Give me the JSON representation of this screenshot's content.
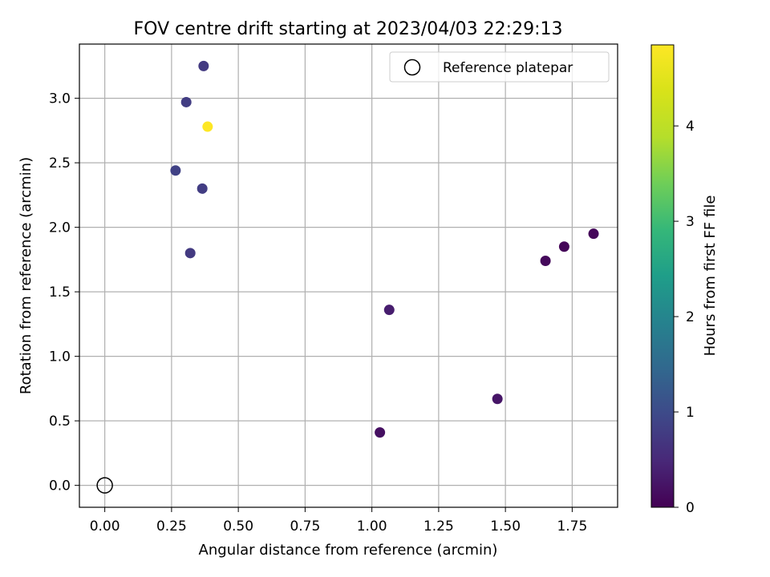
{
  "chart_data": {
    "type": "scatter",
    "title": "FOV centre drift starting at 2023/04/03 22:29:13",
    "xlabel": "Angular distance from reference (arcmin)",
    "ylabel": "Rotation from reference (arcmin)",
    "xlim": [
      -0.095,
      1.92
    ],
    "ylim": [
      -0.17,
      3.42
    ],
    "x_ticks": [
      "0.00",
      "0.25",
      "0.50",
      "0.75",
      "1.00",
      "1.25",
      "1.50",
      "1.75"
    ],
    "x_tick_values": [
      0,
      0.25,
      0.5,
      0.75,
      1.0,
      1.25,
      1.5,
      1.75
    ],
    "y_ticks": [
      "0.0",
      "0.5",
      "1.0",
      "1.5",
      "2.0",
      "2.5",
      "3.0"
    ],
    "y_tick_values": [
      0,
      0.5,
      1.0,
      1.5,
      2.0,
      2.5,
      3.0
    ],
    "grid": true,
    "legend": {
      "position": "top-right",
      "label": "Reference platepar"
    },
    "reference_point": {
      "x": 0,
      "y": 0
    },
    "colorbar": {
      "label": "Hours from first FF file",
      "range": [
        0,
        4.85
      ],
      "ticks": [
        "0",
        "1",
        "2",
        "3",
        "4"
      ],
      "tick_values": [
        0,
        1,
        2,
        3,
        4
      ],
      "colormap": "viridis"
    },
    "points": [
      {
        "x": 1.03,
        "y": 0.41,
        "hours": 0.18
      },
      {
        "x": 1.47,
        "y": 0.67,
        "hours": 0.25
      },
      {
        "x": 1.065,
        "y": 1.36,
        "hours": 0.35
      },
      {
        "x": 1.65,
        "y": 1.74,
        "hours": 0.1
      },
      {
        "x": 1.72,
        "y": 1.85,
        "hours": 0.05
      },
      {
        "x": 1.83,
        "y": 1.95,
        "hours": 0.08
      },
      {
        "x": 0.32,
        "y": 1.8,
        "hours": 0.75
      },
      {
        "x": 0.365,
        "y": 2.3,
        "hours": 0.8
      },
      {
        "x": 0.265,
        "y": 2.44,
        "hours": 0.85
      },
      {
        "x": 0.305,
        "y": 2.97,
        "hours": 0.8
      },
      {
        "x": 0.37,
        "y": 3.25,
        "hours": 0.75
      },
      {
        "x": 0.385,
        "y": 2.78,
        "hours": 4.85
      }
    ]
  }
}
